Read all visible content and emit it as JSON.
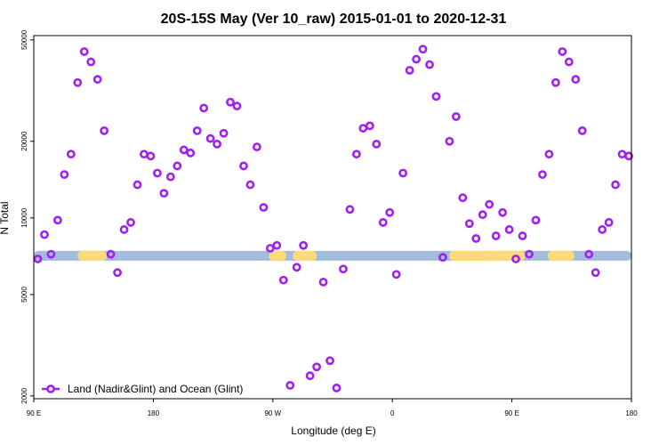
{
  "chart_data": {
    "type": "scatter",
    "title": "20S-15S May (Ver 10_raw)   2015-01-01 to 2020-12-31",
    "xlabel": "Longitude (deg E)",
    "ylabel": "N Total",
    "xlim": [
      90,
      540
    ],
    "ylim": [
      1950,
      52000
    ],
    "yscale": "log",
    "x_ticks": [
      {
        "value": 90,
        "label": "90 E"
      },
      {
        "value": 180,
        "label": "180"
      },
      {
        "value": 270,
        "label": "90 W"
      },
      {
        "value": 360,
        "label": "0"
      },
      {
        "value": 450,
        "label": "90 E"
      },
      {
        "value": 540,
        "label": "180"
      }
    ],
    "y_ticks": [
      {
        "value": 2000,
        "label": "2000"
      },
      {
        "value": 5000,
        "label": "5000"
      },
      {
        "value": 10000,
        "label": "10000"
      },
      {
        "value": 20000,
        "label": "20000"
      },
      {
        "value": 50000,
        "label": "50000"
      }
    ],
    "colors": {
      "series": "#a020f0",
      "ocean_band": "#a4bcdc",
      "land_band": "#ffd97a",
      "axis": "#000000"
    },
    "band": {
      "y_center": 7100,
      "ocean_name": "Ocean",
      "land_name": "Land",
      "land_segments": [
        [
          123,
          145
        ],
        [
          267,
          280
        ],
        [
          285,
          303
        ],
        [
          403,
          437
        ],
        [
          403,
          460
        ],
        [
          477,
          497
        ]
      ]
    },
    "legend": {
      "label": "Land (Nadir&Glint) and Ocean (Glint)",
      "position": "bottom-left"
    },
    "series": [
      {
        "name": "Land (Nadir&Glint) and Ocean (Glint)",
        "points": [
          [
            93,
            6900
          ],
          [
            98,
            8600
          ],
          [
            103,
            7200
          ],
          [
            108,
            9800
          ],
          [
            113,
            14800
          ],
          [
            118,
            17800
          ],
          [
            123,
            34000
          ],
          [
            128,
            45000
          ],
          [
            133,
            41000
          ],
          [
            138,
            35000
          ],
          [
            143,
            22000
          ],
          [
            148,
            7200
          ],
          [
            153,
            6100
          ],
          [
            158,
            9000
          ],
          [
            163,
            9600
          ],
          [
            168,
            13500
          ],
          [
            173,
            17800
          ],
          [
            178,
            17500
          ],
          [
            183,
            15000
          ],
          [
            188,
            12500
          ],
          [
            193,
            14500
          ],
          [
            198,
            16000
          ],
          [
            203,
            18500
          ],
          [
            208,
            18000
          ],
          [
            213,
            22000
          ],
          [
            218,
            27000
          ],
          [
            223,
            20500
          ],
          [
            228,
            19500
          ],
          [
            233,
            21500
          ],
          [
            238,
            28500
          ],
          [
            243,
            27500
          ],
          [
            248,
            16000
          ],
          [
            253,
            13500
          ],
          [
            258,
            19000
          ],
          [
            263,
            11000
          ],
          [
            268,
            7600
          ],
          [
            273,
            7800
          ],
          [
            278,
            5700
          ],
          [
            283,
            2200
          ],
          [
            288,
            6400
          ],
          [
            293,
            7800
          ],
          [
            298,
            2400
          ],
          [
            303,
            2600
          ],
          [
            308,
            5600
          ],
          [
            313,
            2750
          ],
          [
            318,
            2150
          ],
          [
            323,
            6300
          ],
          [
            328,
            10800
          ],
          [
            333,
            17800
          ],
          [
            338,
            22500
          ],
          [
            343,
            23000
          ],
          [
            348,
            19500
          ],
          [
            353,
            9600
          ],
          [
            358,
            10500
          ],
          [
            363,
            6000
          ],
          [
            368,
            15000
          ],
          [
            373,
            38000
          ],
          [
            378,
            42000
          ],
          [
            383,
            46000
          ],
          [
            388,
            40000
          ],
          [
            393,
            30000
          ],
          [
            398,
            7000
          ],
          [
            403,
            20000
          ],
          [
            408,
            25000
          ],
          [
            413,
            12000
          ],
          [
            418,
            9500
          ],
          [
            423,
            8300
          ],
          [
            428,
            10300
          ],
          [
            433,
            11300
          ],
          [
            438,
            8500
          ],
          [
            443,
            10500
          ],
          [
            448,
            9000
          ],
          [
            453,
            6900
          ],
          [
            458,
            8500
          ],
          [
            463,
            7200
          ],
          [
            468,
            9800
          ],
          [
            473,
            14800
          ],
          [
            478,
            17800
          ],
          [
            483,
            34000
          ],
          [
            488,
            45000
          ],
          [
            493,
            41000
          ],
          [
            498,
            35000
          ],
          [
            503,
            22000
          ],
          [
            508,
            7200
          ],
          [
            513,
            6100
          ],
          [
            518,
            9000
          ],
          [
            523,
            9600
          ],
          [
            528,
            13500
          ],
          [
            533,
            17800
          ],
          [
            538,
            17500
          ]
        ]
      }
    ]
  }
}
